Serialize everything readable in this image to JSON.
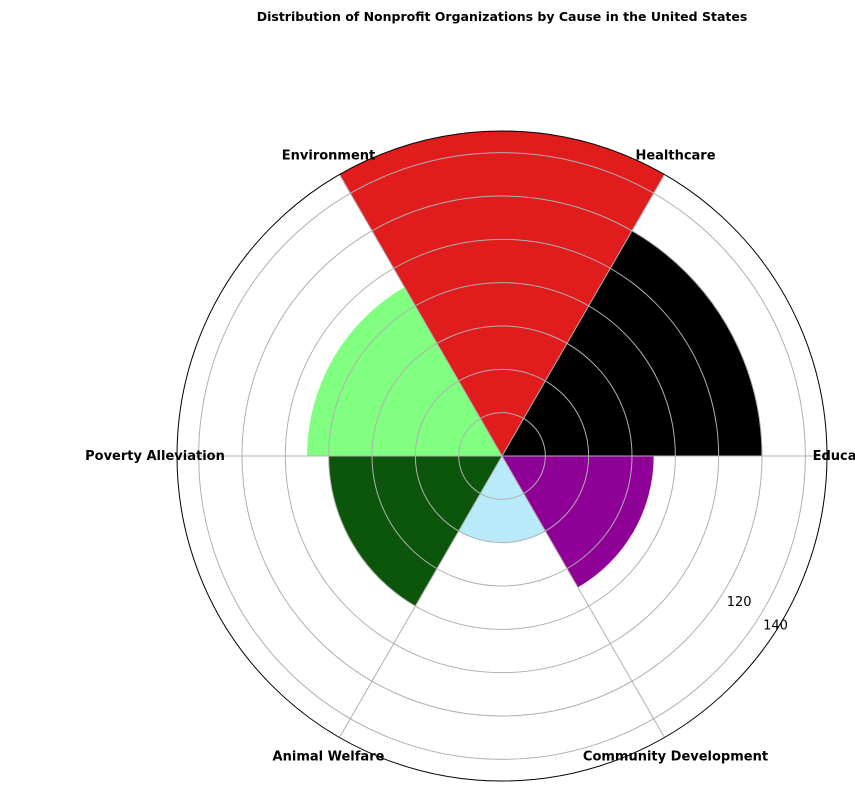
{
  "chart_data": {
    "type": "polar-bar",
    "title": "Distribution of Nonprofit Organizations by Cause in the United States",
    "categories": [
      "Education",
      "Healthcare",
      "Environment",
      "Poverty Alleviation",
      "Animal Welfare",
      "Community Development"
    ],
    "values": [
      120,
      150,
      90,
      80,
      40,
      70
    ],
    "colors": [
      "#000000",
      "#e01c1c",
      "#80ff80",
      "#0c560c",
      "#b8eafa",
      "#8e0096"
    ],
    "rlim": [
      0,
      150
    ],
    "radial_ticks": [
      20,
      40,
      60,
      80,
      100,
      120,
      140
    ],
    "radial_tick_labels": [
      {
        "value": 120,
        "label": "120"
      },
      {
        "value": 140,
        "label": "140"
      }
    ],
    "grid": true
  }
}
